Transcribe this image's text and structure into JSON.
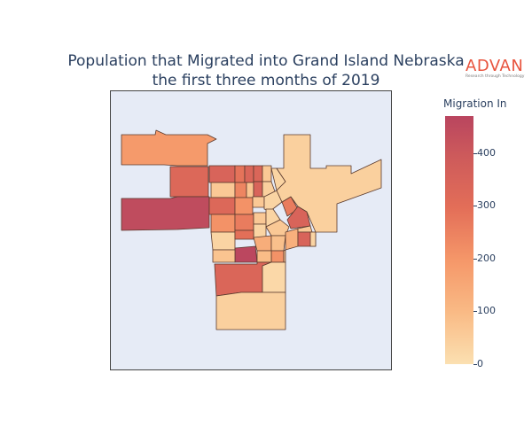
{
  "title": {
    "line1": "Population that Migrated into Grand Island Nebraska",
    "line2": "the first three months of 2019"
  },
  "brand": {
    "name": "ADVAN",
    "tagline": "Research through Technology"
  },
  "legend": {
    "title": "Migration In",
    "range": [
      0,
      470
    ],
    "ticks": [
      "0",
      "100",
      "200",
      "300",
      "400"
    ],
    "colors": [
      "#fbe0b1",
      "#f9ba85",
      "#f59769",
      "#e36e58",
      "#cd5a5b",
      "#b9455f"
    ]
  },
  "chart_data": {
    "type": "choropleth",
    "value_label": "Migration In",
    "colorscale_range": [
      0,
      470
    ],
    "regions": [
      {
        "id": "nw-large",
        "value": 180
      },
      {
        "id": "west-mid",
        "value": 310
      },
      {
        "id": "west-far",
        "value": 440
      },
      {
        "id": "c1",
        "value": 330
      },
      {
        "id": "c2",
        "value": 270
      },
      {
        "id": "c3",
        "value": 320
      },
      {
        "id": "c4",
        "value": 60
      },
      {
        "id": "c5",
        "value": 230
      },
      {
        "id": "c6",
        "value": 70
      },
      {
        "id": "c7",
        "value": 320
      },
      {
        "id": "c8",
        "value": 60
      },
      {
        "id": "c9",
        "value": 330
      },
      {
        "id": "c10",
        "value": 40
      },
      {
        "id": "c11",
        "value": 310
      },
      {
        "id": "c12",
        "value": 200
      },
      {
        "id": "c13",
        "value": 60
      },
      {
        "id": "c14",
        "value": 30
      },
      {
        "id": "c15",
        "value": 30
      },
      {
        "id": "c16",
        "value": 200
      },
      {
        "id": "c17",
        "value": 250
      },
      {
        "id": "c18",
        "value": 60
      },
      {
        "id": "c19",
        "value": 30
      },
      {
        "id": "c20",
        "value": 30
      },
      {
        "id": "c21",
        "value": 30
      },
      {
        "id": "c22",
        "value": 280
      },
      {
        "id": "c23",
        "value": 250
      },
      {
        "id": "c24",
        "value": 330
      },
      {
        "id": "c25",
        "value": 60
      },
      {
        "id": "c26",
        "value": 130
      },
      {
        "id": "c27",
        "value": 80
      },
      {
        "id": "c28",
        "value": 120
      },
      {
        "id": "c29",
        "value": 60
      },
      {
        "id": "c30",
        "value": 330
      },
      {
        "id": "c31",
        "value": 460
      },
      {
        "id": "c32",
        "value": 70
      },
      {
        "id": "c33",
        "value": 200
      },
      {
        "id": "c34",
        "value": 90
      },
      {
        "id": "c35",
        "value": 60
      },
      {
        "id": "ne-large",
        "value": 40
      },
      {
        "id": "east-strip",
        "value": 30
      },
      {
        "id": "s-mid",
        "value": 320
      },
      {
        "id": "s-right",
        "value": 20
      },
      {
        "id": "s-large",
        "value": 40
      }
    ]
  }
}
